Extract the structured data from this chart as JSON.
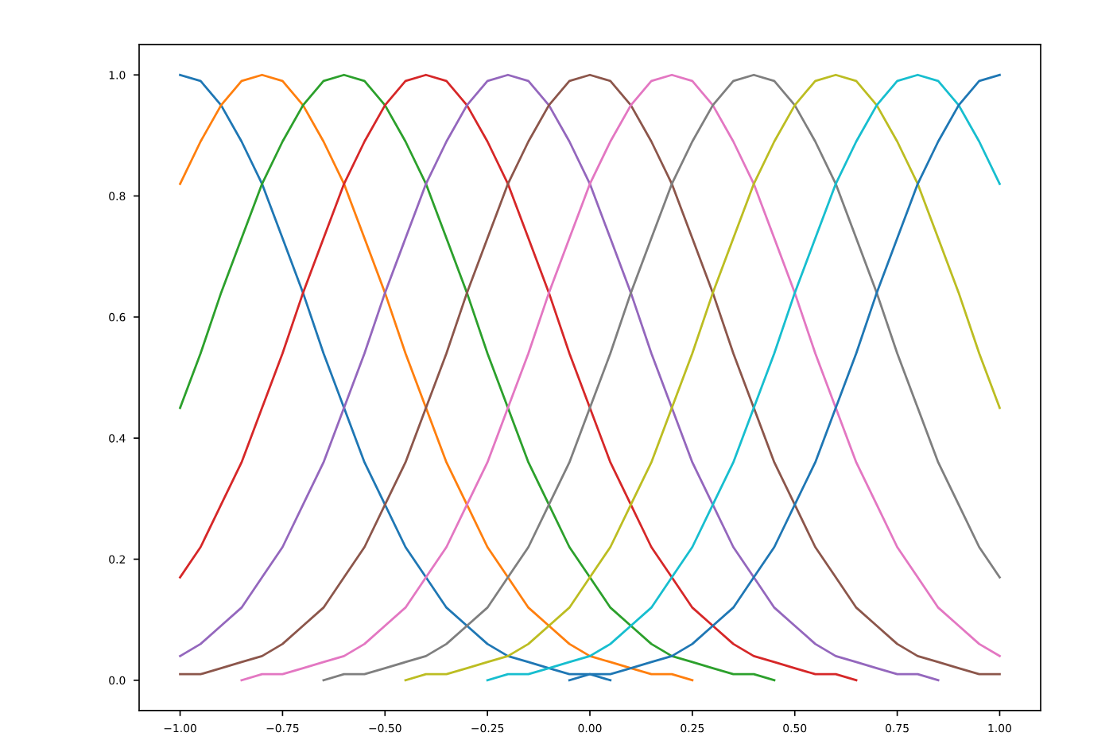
{
  "chart_data": {
    "type": "line",
    "x": [
      -1.0,
      -0.95,
      -0.9,
      -0.85,
      -0.8,
      -0.75,
      -0.7,
      -0.65,
      -0.6,
      -0.55,
      -0.5,
      -0.45,
      -0.4,
      -0.35,
      -0.3,
      -0.25,
      -0.2,
      -0.15,
      -0.1,
      -0.05,
      0.0,
      0.05,
      0.1,
      0.15,
      0.2,
      0.25,
      0.3,
      0.35,
      0.4,
      0.45,
      0.5,
      0.55,
      0.6,
      0.65,
      0.7,
      0.75,
      0.8,
      0.85,
      0.9,
      0.95,
      1.0
    ],
    "series": [
      {
        "color": "#1f77b4",
        "values": [
          1,
          0.99,
          0.95,
          0.89,
          0.82,
          0.73,
          0.64,
          0.54,
          0.45,
          0.36,
          0.29,
          0.22,
          0.17,
          0.12,
          0.09,
          0.06,
          0.04,
          0.03,
          0.02,
          0.01,
          0.01,
          0,
          null,
          null,
          null,
          null,
          null,
          null,
          null,
          null,
          null,
          null,
          null,
          null,
          null,
          null,
          null,
          null,
          null,
          null,
          null
        ]
      },
      {
        "color": "#ff7f0e",
        "values": [
          0.82,
          0.89,
          0.95,
          0.99,
          1,
          0.99,
          0.95,
          0.89,
          0.82,
          0.73,
          0.64,
          0.54,
          0.45,
          0.36,
          0.29,
          0.22,
          0.17,
          0.12,
          0.09,
          0.06,
          0.04,
          0.03,
          0.02,
          0.01,
          0.01,
          0,
          null,
          null,
          null,
          null,
          null,
          null,
          null,
          null,
          null,
          null,
          null,
          null,
          null,
          null,
          null
        ]
      },
      {
        "color": "#2ca02c",
        "values": [
          0.45,
          0.54,
          0.64,
          0.73,
          0.82,
          0.89,
          0.95,
          0.99,
          1,
          0.99,
          0.95,
          0.89,
          0.82,
          0.73,
          0.64,
          0.54,
          0.45,
          0.36,
          0.29,
          0.22,
          0.17,
          0.12,
          0.09,
          0.06,
          0.04,
          0.03,
          0.02,
          0.01,
          0.01,
          0,
          null,
          null,
          null,
          null,
          null,
          null,
          null,
          null,
          null,
          null,
          null
        ]
      },
      {
        "color": "#d62728",
        "values": [
          0.17,
          0.22,
          0.29,
          0.36,
          0.45,
          0.54,
          0.64,
          0.73,
          0.82,
          0.89,
          0.95,
          0.99,
          1,
          0.99,
          0.95,
          0.89,
          0.82,
          0.73,
          0.64,
          0.54,
          0.45,
          0.36,
          0.29,
          0.22,
          0.17,
          0.12,
          0.09,
          0.06,
          0.04,
          0.03,
          0.02,
          0.01,
          0.01,
          0,
          null,
          null,
          null,
          null,
          null,
          null,
          null
        ]
      },
      {
        "color": "#9467bd",
        "values": [
          0.04,
          0.06,
          0.09,
          0.12,
          0.17,
          0.22,
          0.29,
          0.36,
          0.45,
          0.54,
          0.64,
          0.73,
          0.82,
          0.89,
          0.95,
          0.99,
          1,
          0.99,
          0.95,
          0.89,
          0.82,
          0.73,
          0.64,
          0.54,
          0.45,
          0.36,
          0.29,
          0.22,
          0.17,
          0.12,
          0.09,
          0.06,
          0.04,
          0.03,
          0.02,
          0.01,
          0.01,
          0,
          null,
          null,
          null
        ]
      },
      {
        "color": "#8c564b",
        "values": [
          0.01,
          0.01,
          0.02,
          0.03,
          0.04,
          0.06,
          0.09,
          0.12,
          0.17,
          0.22,
          0.29,
          0.36,
          0.45,
          0.54,
          0.64,
          0.73,
          0.82,
          0.89,
          0.95,
          0.99,
          1,
          0.99,
          0.95,
          0.89,
          0.82,
          0.73,
          0.64,
          0.54,
          0.45,
          0.36,
          0.29,
          0.22,
          0.17,
          0.12,
          0.09,
          0.06,
          0.04,
          0.03,
          0.02,
          0.01,
          0.01
        ]
      },
      {
        "color": "#e377c2",
        "values": [
          null,
          null,
          null,
          0,
          0.01,
          0.01,
          0.02,
          0.03,
          0.04,
          0.06,
          0.09,
          0.12,
          0.17,
          0.22,
          0.29,
          0.36,
          0.45,
          0.54,
          0.64,
          0.73,
          0.82,
          0.89,
          0.95,
          0.99,
          1,
          0.99,
          0.95,
          0.89,
          0.82,
          0.73,
          0.64,
          0.54,
          0.45,
          0.36,
          0.29,
          0.22,
          0.17,
          0.12,
          0.09,
          0.06,
          0.04
        ]
      },
      {
        "color": "#7f7f7f",
        "values": [
          null,
          null,
          null,
          null,
          null,
          null,
          null,
          0,
          0.01,
          0.01,
          0.02,
          0.03,
          0.04,
          0.06,
          0.09,
          0.12,
          0.17,
          0.22,
          0.29,
          0.36,
          0.45,
          0.54,
          0.64,
          0.73,
          0.82,
          0.89,
          0.95,
          0.99,
          1,
          0.99,
          0.95,
          0.89,
          0.82,
          0.73,
          0.64,
          0.54,
          0.45,
          0.36,
          0.29,
          0.22,
          0.17
        ]
      },
      {
        "color": "#bcbd22",
        "values": [
          null,
          null,
          null,
          null,
          null,
          null,
          null,
          null,
          null,
          null,
          null,
          0,
          0.01,
          0.01,
          0.02,
          0.03,
          0.04,
          0.06,
          0.09,
          0.12,
          0.17,
          0.22,
          0.29,
          0.36,
          0.45,
          0.54,
          0.64,
          0.73,
          0.82,
          0.89,
          0.95,
          0.99,
          1,
          0.99,
          0.95,
          0.89,
          0.82,
          0.73,
          0.64,
          0.54,
          0.45
        ]
      },
      {
        "color": "#17becf",
        "values": [
          null,
          null,
          null,
          null,
          null,
          null,
          null,
          null,
          null,
          null,
          null,
          null,
          null,
          null,
          null,
          0,
          0.01,
          0.01,
          0.02,
          0.03,
          0.04,
          0.06,
          0.09,
          0.12,
          0.17,
          0.22,
          0.29,
          0.36,
          0.45,
          0.54,
          0.64,
          0.73,
          0.82,
          0.89,
          0.95,
          0.99,
          1,
          0.99,
          0.95,
          0.89,
          0.82
        ]
      },
      {
        "color": "#1f77b4",
        "values": [
          null,
          null,
          null,
          null,
          null,
          null,
          null,
          null,
          null,
          null,
          null,
          null,
          null,
          null,
          null,
          null,
          null,
          null,
          null,
          0,
          0.01,
          0.01,
          0.02,
          0.03,
          0.04,
          0.06,
          0.09,
          0.12,
          0.17,
          0.22,
          0.29,
          0.36,
          0.45,
          0.54,
          0.64,
          0.73,
          0.82,
          0.89,
          0.95,
          0.99,
          1
        ]
      }
    ],
    "xlim": [
      -1.1,
      1.1
    ],
    "ylim": [
      -0.05,
      1.05
    ],
    "xticks": [
      {
        "value": -1.0,
        "label": "−1.00"
      },
      {
        "value": -0.75,
        "label": "−0.75"
      },
      {
        "value": -0.5,
        "label": "−0.50"
      },
      {
        "value": -0.25,
        "label": "−0.25"
      },
      {
        "value": 0,
        "label": "0.00"
      },
      {
        "value": 0.25,
        "label": "0.25"
      },
      {
        "value": 0.5,
        "label": "0.50"
      },
      {
        "value": 0.75,
        "label": "0.75"
      },
      {
        "value": 1.0,
        "label": "1.00"
      }
    ],
    "yticks": [
      {
        "value": 0,
        "label": "0.0"
      },
      {
        "value": 0.2,
        "label": "0.2"
      },
      {
        "value": 0.4,
        "label": "0.4"
      },
      {
        "value": 0.6,
        "label": "0.6"
      },
      {
        "value": 0.8,
        "label": "0.8"
      },
      {
        "value": 1.0,
        "label": "1.0"
      }
    ],
    "grid": false,
    "marker": "none",
    "line_style": "solid"
  }
}
